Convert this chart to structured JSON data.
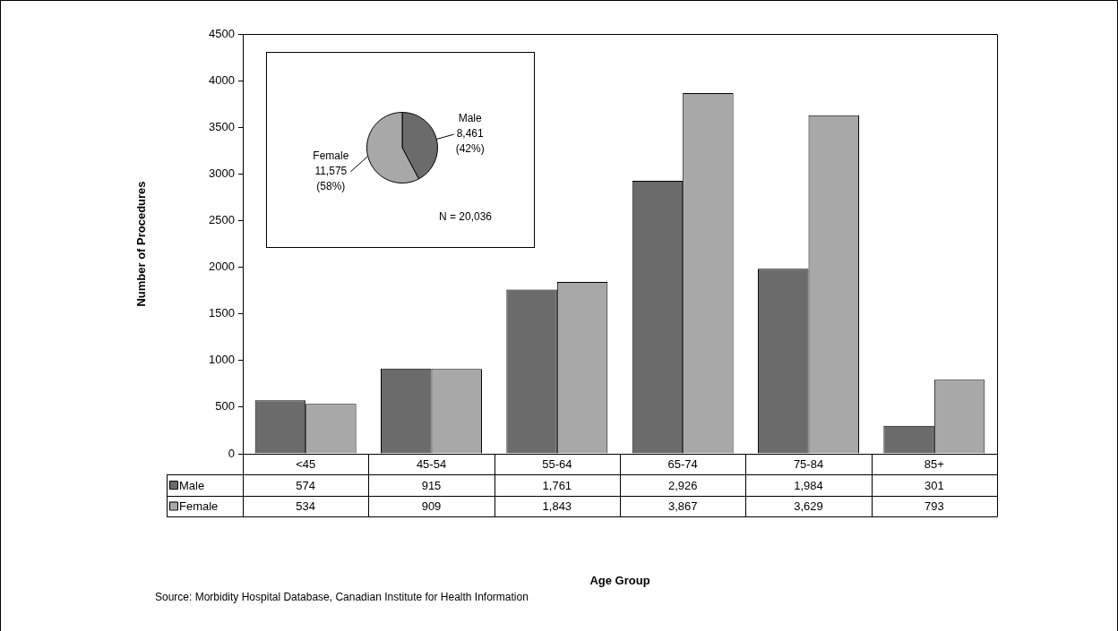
{
  "chart_data": [
    {
      "type": "bar",
      "xlabel": "Age Group",
      "ylabel": "Number of Procedures",
      "categories": [
        "<45",
        "45-54",
        "55-64",
        "65-74",
        "75-84",
        "85+"
      ],
      "series": [
        {
          "name": "Male",
          "color": "#6b6b6b",
          "values": [
            574,
            915,
            1761,
            2926,
            1984,
            301
          ],
          "value_labels": [
            "574",
            "915",
            "1,761",
            "2,926",
            "1,984",
            "301"
          ]
        },
        {
          "name": "Female",
          "color": "#a8a8a8",
          "values": [
            534,
            909,
            1843,
            3867,
            3629,
            793
          ],
          "value_labels": [
            "534",
            "909",
            "1,843",
            "3,867",
            "3,629",
            "793"
          ]
        }
      ],
      "ylim": [
        0,
        4500
      ],
      "yticks": [
        0,
        500,
        1000,
        1500,
        2000,
        2500,
        3000,
        3500,
        4000,
        4500
      ],
      "grid": false,
      "legend": "bottom left",
      "annotations": [
        "Source: Morbidity Hospital Database, Canadian Institute for Health Information"
      ]
    },
    {
      "type": "pie",
      "categories": [
        "Male",
        "Female"
      ],
      "values": [
        8461,
        11575
      ],
      "colors": [
        "#6b6b6b",
        "#a8a8a8"
      ],
      "value_labels": [
        "8,461\n(42%)",
        "11,575\n(58%)"
      ],
      "annotations": [
        "N = 20,036"
      ]
    }
  ]
}
